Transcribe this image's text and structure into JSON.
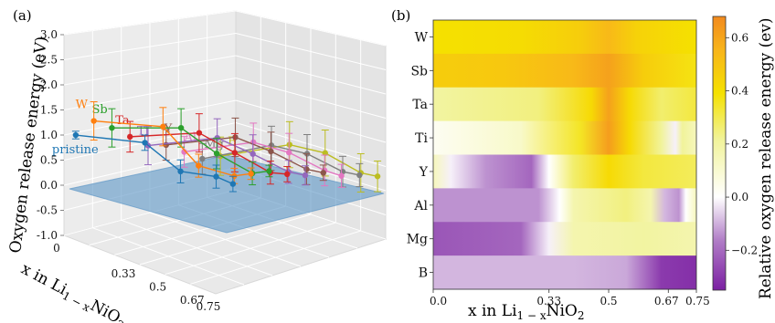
{
  "chart_data": [
    {
      "panel": "(a)",
      "type": "line",
      "zlabel": "Oxygen release energy (eV)",
      "xlabel": "x in Li1−xNiO2",
      "zticks": [
        "-1.0",
        "-0.5",
        "0.0",
        "0.5",
        "1.0",
        "1.5",
        "2.0",
        "2.5",
        "3.0"
      ],
      "xticks": [
        "0",
        "0.33",
        "0.5",
        "0.67",
        "0.75"
      ],
      "zlim": [
        -1.0,
        3.0
      ],
      "grid": true,
      "x": [
        0,
        0.33,
        0.5,
        0.67,
        0.75
      ],
      "series": [
        {
          "name": "pristine",
          "color": "#1f77b4",
          "values": [
            1.45,
            0.8,
            -0.18,
            -0.55,
            -0.85
          ],
          "errors": [
            0.1,
            0.2,
            0.3,
            0.3,
            0.2
          ]
        },
        {
          "name": "W",
          "color": "#ff7f0e",
          "values": [
            1.95,
            1.35,
            0.1,
            -0.4,
            -0.45
          ],
          "errors": [
            0.5,
            0.5,
            0.3,
            0.2,
            0.15
          ]
        },
        {
          "name": "Sb",
          "color": "#2ca02c",
          "values": [
            1.9,
            1.45,
            0.55,
            -0.2,
            -0.25
          ],
          "errors": [
            0.5,
            0.5,
            0.4,
            0.3,
            0.15
          ]
        },
        {
          "name": "Ta",
          "color": "#d62728",
          "values": [
            1.8,
            1.45,
            0.7,
            -0.05,
            -0.2
          ],
          "errors": [
            0.4,
            0.5,
            0.5,
            0.3,
            0.2
          ]
        },
        {
          "name": "Ti",
          "color": "#9467bd",
          "values": [
            1.7,
            1.45,
            0.8,
            0.1,
            -0.1
          ],
          "errors": [
            0.5,
            0.5,
            0.5,
            0.3,
            0.25
          ]
        },
        {
          "name": "Y",
          "color": "#8c564b",
          "values": [
            1.85,
            1.6,
            1.0,
            0.3,
            0.1
          ],
          "errors": [
            0.4,
            0.5,
            0.5,
            0.4,
            0.2
          ]
        },
        {
          "name": "Al",
          "color": "#e377c2",
          "values": [
            1.8,
            1.6,
            1.1,
            0.4,
            0.15
          ],
          "errors": [
            0.4,
            0.5,
            0.5,
            0.4,
            0.3
          ]
        },
        {
          "name": "Mg",
          "color": "#7f7f7f",
          "values": [
            1.75,
            1.65,
            1.2,
            0.5,
            0.3
          ],
          "errors": [
            0.4,
            0.5,
            0.5,
            0.4,
            0.3
          ]
        },
        {
          "name": "B",
          "color": "#bcbd22",
          "values": [
            1.95,
            1.8,
            1.35,
            0.6,
            0.4
          ],
          "errors": [
            0.5,
            0.6,
            0.6,
            0.5,
            0.4
          ]
        }
      ]
    },
    {
      "panel": "(b)",
      "type": "heatmap",
      "xlabel": "x in Li1−xNiO2",
      "xticks": [
        "0.0",
        "0.33",
        "0.5",
        "0.67",
        "0.75"
      ],
      "xlim": [
        0,
        0.75
      ],
      "rows": [
        "W",
        "Sb",
        "Ta",
        "Ti",
        "Y",
        "Al",
        "Mg",
        "B"
      ],
      "colorbar_label": "Relative oxygen release energy (ev)",
      "colorbar_ticks": [
        "0.6",
        "0.4",
        "0.2",
        "0.0",
        "−0.2"
      ],
      "vmin": -0.35,
      "vmax": 0.68,
      "row_profiles": [
        {
          "row": "W",
          "points": [
            [
              0,
              0.32
            ],
            [
              0.25,
              0.34
            ],
            [
              0.42,
              0.4
            ],
            [
              0.5,
              0.48
            ],
            [
              0.58,
              0.38
            ],
            [
              0.75,
              0.32
            ]
          ]
        },
        {
          "row": "Sb",
          "points": [
            [
              0,
              0.4
            ],
            [
              0.2,
              0.42
            ],
            [
              0.4,
              0.48
            ],
            [
              0.5,
              0.58
            ],
            [
              0.6,
              0.4
            ],
            [
              0.75,
              0.3
            ]
          ]
        },
        {
          "row": "Ta",
          "points": [
            [
              0,
              0.14
            ],
            [
              0.3,
              0.18
            ],
            [
              0.45,
              0.35
            ],
            [
              0.5,
              0.58
            ],
            [
              0.56,
              0.35
            ],
            [
              0.65,
              0.2
            ],
            [
              0.75,
              0.25
            ]
          ]
        },
        {
          "row": "Ti",
          "points": [
            [
              0,
              0.02
            ],
            [
              0.25,
              0.08
            ],
            [
              0.42,
              0.28
            ],
            [
              0.5,
              0.6
            ],
            [
              0.56,
              0.35
            ],
            [
              0.65,
              0.15
            ],
            [
              0.69,
              -0.02
            ],
            [
              0.71,
              0.15
            ],
            [
              0.75,
              0.1
            ]
          ]
        },
        {
          "row": "Y",
          "points": [
            [
              0,
              0.1
            ],
            [
              0.05,
              -0.02
            ],
            [
              0.15,
              -0.15
            ],
            [
              0.28,
              -0.22
            ],
            [
              0.33,
              0.0
            ],
            [
              0.4,
              0.2
            ],
            [
              0.5,
              0.35
            ],
            [
              0.6,
              0.25
            ],
            [
              0.75,
              0.22
            ]
          ]
        },
        {
          "row": "Al",
          "points": [
            [
              0,
              -0.15
            ],
            [
              0.3,
              -0.15
            ],
            [
              0.36,
              0.0
            ],
            [
              0.4,
              0.12
            ],
            [
              0.55,
              0.18
            ],
            [
              0.62,
              0.12
            ],
            [
              0.66,
              -0.1
            ],
            [
              0.7,
              -0.15
            ],
            [
              0.72,
              0.0
            ],
            [
              0.75,
              0.1
            ]
          ]
        },
        {
          "row": "Mg",
          "points": [
            [
              0,
              -0.25
            ],
            [
              0.25,
              -0.22
            ],
            [
              0.33,
              -0.02
            ],
            [
              0.4,
              0.12
            ],
            [
              0.6,
              0.14
            ],
            [
              0.75,
              0.12
            ]
          ]
        },
        {
          "row": "B",
          "points": [
            [
              0,
              -0.1
            ],
            [
              0.4,
              -0.1
            ],
            [
              0.55,
              -0.12
            ],
            [
              0.65,
              -0.3
            ],
            [
              0.75,
              -0.32
            ]
          ]
        }
      ]
    }
  ]
}
